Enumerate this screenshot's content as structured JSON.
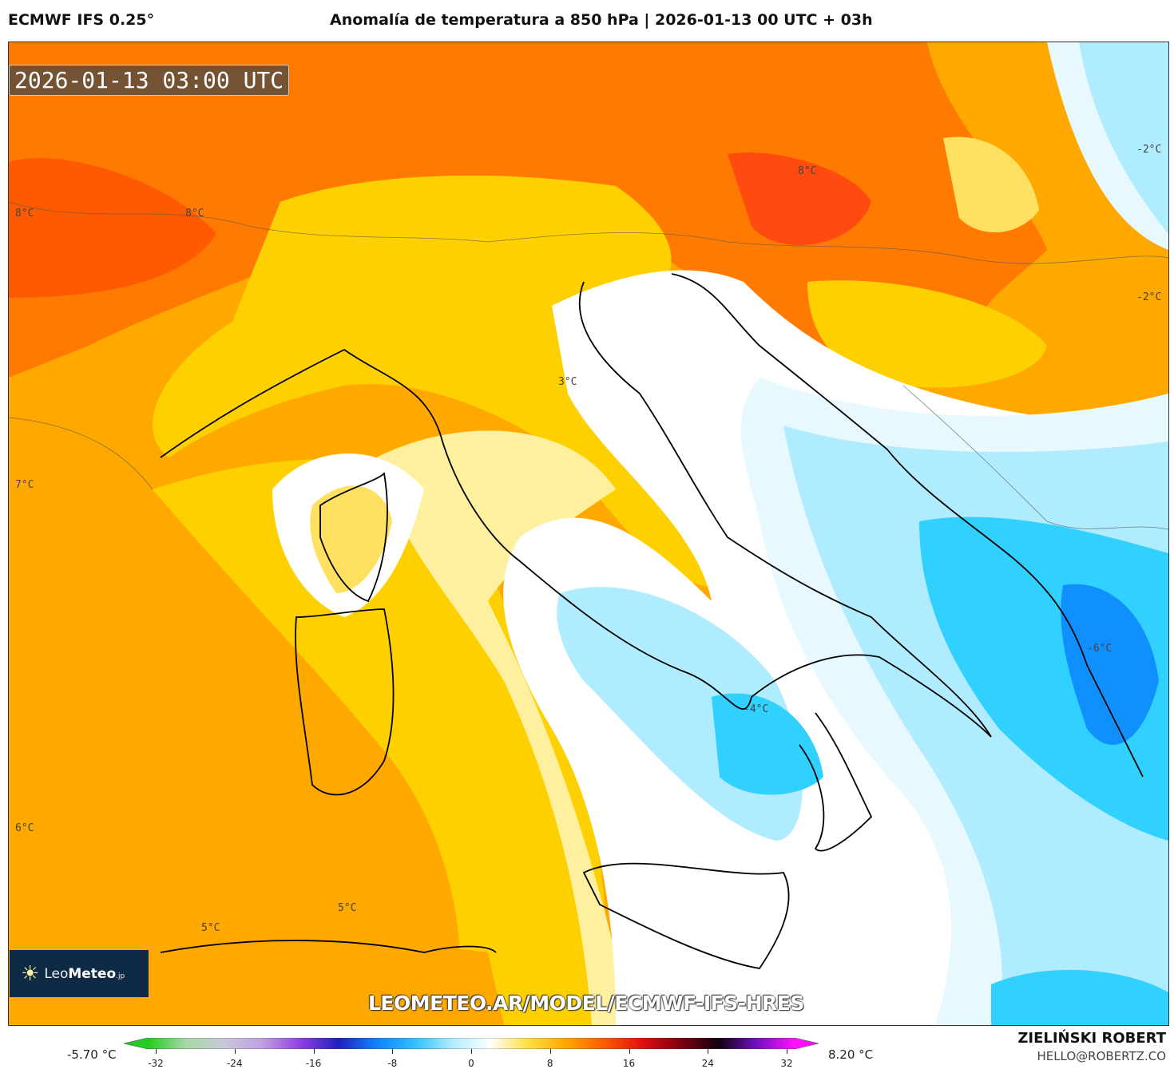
{
  "header": {
    "model": "ECMWF IFS 0.25°",
    "title": "Anomalía de temperatura a 850 hPa | 2026-01-13 00 UTC + 03h"
  },
  "map": {
    "timestamp": "2026-01-13 03:00 UTC",
    "url_watermark": "LEOMETEO.AR/MODEL/ECMWF-IFS-HRES",
    "logo": "LeoMeteo.jp",
    "labels": [
      "8°C",
      "8°C",
      "7°C",
      "6°C",
      "5°C",
      "5°C",
      "3°C",
      "8°C",
      "-2°C",
      "-2°C",
      "-6°C",
      "-4°C"
    ]
  },
  "colorbar": {
    "min_label": "-5.70 °C",
    "max_label": "8.20 °C",
    "ticks": [
      "-32",
      "-24",
      "-16",
      "-8",
      "0",
      "8",
      "16",
      "24",
      "32"
    ],
    "colors": [
      "#22cc22",
      "#a8d8a8",
      "#c8c8d8",
      "#c0a0e0",
      "#9040e0",
      "#2020c0",
      "#1080ff",
      "#30c0ff",
      "#b0ecff",
      "#ffffff",
      "#ffe040",
      "#ffa800",
      "#ff5a00",
      "#e01010",
      "#800010",
      "#100010",
      "#7010c0",
      "#ff10ff"
    ]
  },
  "footer": {
    "author": "ZIELIŃSKI ROBERT",
    "email": "HELLO@ROBERTZ.CO"
  }
}
